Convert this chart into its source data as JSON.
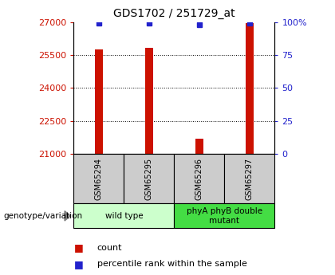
{
  "title": "GDS1702 / 251729_at",
  "samples": [
    "GSM65294",
    "GSM65295",
    "GSM65296",
    "GSM65297"
  ],
  "counts": [
    25750,
    25820,
    21700,
    26950
  ],
  "percentile_values": [
    99,
    99,
    98,
    99
  ],
  "ylim_left": [
    21000,
    27000
  ],
  "ylim_right": [
    0,
    100
  ],
  "yticks_left": [
    21000,
    22500,
    24000,
    25500,
    27000
  ],
  "yticks_right": [
    0,
    25,
    50,
    75,
    100
  ],
  "bar_color": "#cc1100",
  "dot_color": "#2222cc",
  "groups": [
    {
      "label": "wild type",
      "samples": [
        0,
        1
      ],
      "color": "#ccffcc"
    },
    {
      "label": "phyA phyB double\nmutant",
      "samples": [
        2,
        3
      ],
      "color": "#44dd44"
    }
  ],
  "left_tick_color": "#cc1100",
  "right_tick_color": "#2222cc",
  "sample_box_color": "#cccccc",
  "legend_count_color": "#cc1100",
  "legend_pct_color": "#2222cc",
  "genotype_label": "genotype/variation",
  "legend_count_label": "count",
  "legend_pct_label": "percentile rank within the sample",
  "bar_width": 0.15
}
